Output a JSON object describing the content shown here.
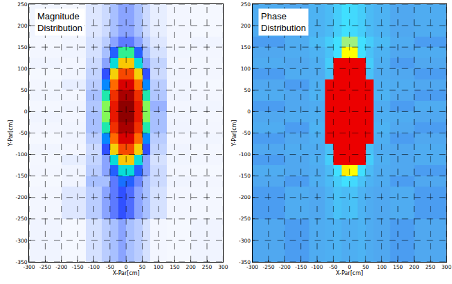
{
  "chart_data": [
    {
      "type": "heatmap",
      "title": "Magnitude Distribution",
      "xlabel": "X-Par[cm]",
      "ylabel": "Y-Par[cm]",
      "x": [
        -300,
        -200,
        -125,
        -75,
        -50,
        -25,
        0,
        25,
        50,
        75,
        125,
        200,
        300
      ],
      "y": [
        -350,
        -250,
        -175,
        -150,
        -125,
        -100,
        -75,
        -50,
        -25,
        0,
        25,
        50,
        75,
        100,
        125,
        150,
        175,
        250
      ],
      "z": [
        [
          0.12,
          0.08,
          0.15,
          0.18,
          0.2,
          0.22,
          0.2,
          0.18,
          0.15,
          0.1,
          0.08,
          0.12
        ],
        [
          0.1,
          0.14,
          0.18,
          0.22,
          0.25,
          0.28,
          0.26,
          0.22,
          0.2,
          0.15,
          0.1,
          0.09
        ],
        [
          0.08,
          0.12,
          0.2,
          0.2,
          0.25,
          0.32,
          0.3,
          0.24,
          0.2,
          0.16,
          0.12,
          0.1
        ],
        [
          0.1,
          0.12,
          0.18,
          0.22,
          0.3,
          0.45,
          0.45,
          0.3,
          0.22,
          0.16,
          0.1,
          0.08
        ],
        [
          0.09,
          0.13,
          0.17,
          0.22,
          0.45,
          0.63,
          0.63,
          0.45,
          0.22,
          0.15,
          0.11,
          0.1
        ],
        [
          0.11,
          0.1,
          0.16,
          0.28,
          0.62,
          0.77,
          0.77,
          0.62,
          0.28,
          0.17,
          0.12,
          0.09
        ],
        [
          0.08,
          0.12,
          0.18,
          0.35,
          0.73,
          0.87,
          0.87,
          0.73,
          0.35,
          0.18,
          0.1,
          0.11
        ],
        [
          0.1,
          0.11,
          0.2,
          0.48,
          0.8,
          0.94,
          0.94,
          0.8,
          0.48,
          0.2,
          0.12,
          0.1
        ],
        [
          0.12,
          0.1,
          0.2,
          0.53,
          0.83,
          0.98,
          0.98,
          0.83,
          0.53,
          0.2,
          0.11,
          0.09
        ],
        [
          0.09,
          0.12,
          0.19,
          0.53,
          0.83,
          0.98,
          0.98,
          0.83,
          0.53,
          0.21,
          0.1,
          0.11
        ],
        [
          0.11,
          0.1,
          0.2,
          0.48,
          0.8,
          0.94,
          0.94,
          0.8,
          0.48,
          0.19,
          0.12,
          0.1
        ],
        [
          0.1,
          0.13,
          0.18,
          0.35,
          0.73,
          0.87,
          0.87,
          0.73,
          0.35,
          0.18,
          0.11,
          0.08
        ],
        [
          0.08,
          0.11,
          0.17,
          0.28,
          0.62,
          0.77,
          0.77,
          0.62,
          0.28,
          0.16,
          0.12,
          0.1
        ],
        [
          0.12,
          0.1,
          0.16,
          0.22,
          0.45,
          0.63,
          0.63,
          0.45,
          0.22,
          0.17,
          0.1,
          0.09
        ],
        [
          0.1,
          0.12,
          0.15,
          0.2,
          0.3,
          0.5,
          0.5,
          0.3,
          0.2,
          0.15,
          0.11,
          0.1
        ],
        [
          0.09,
          0.11,
          0.15,
          0.18,
          0.22,
          0.25,
          0.25,
          0.22,
          0.18,
          0.14,
          0.1,
          0.12
        ],
        [
          0.11,
          0.09,
          0.14,
          0.16,
          0.2,
          0.22,
          0.22,
          0.2,
          0.16,
          0.13,
          0.1,
          0.08
        ]
      ],
      "zlim": [
        0,
        1
      ],
      "xlim": [
        -300,
        300
      ],
      "ylim": [
        -350,
        250
      ],
      "xticks": [
        -300,
        -250,
        -200,
        -150,
        -100,
        -50,
        0,
        50,
        100,
        150,
        200,
        250,
        300
      ],
      "yticks": [
        -350,
        -300,
        -250,
        -200,
        -150,
        -100,
        -50,
        0,
        50,
        100,
        150,
        200,
        250
      ],
      "grid": true
    },
    {
      "type": "heatmap",
      "title": "Phase Distribution",
      "xlabel": "X-Par[cm]",
      "ylabel": "Y-Par[cm]",
      "x": [
        -300,
        -200,
        -125,
        -75,
        -50,
        -25,
        0,
        25,
        50,
        75,
        125,
        200,
        300
      ],
      "y": [
        -350,
        -250,
        -175,
        -150,
        -125,
        -100,
        -75,
        -50,
        -25,
        0,
        25,
        50,
        75,
        100,
        125,
        150,
        175,
        250
      ],
      "z": [
        [
          0.35,
          0.34,
          0.36,
          0.37,
          0.38,
          0.36,
          0.37,
          0.38,
          0.36,
          0.35,
          0.34,
          0.35
        ],
        [
          0.34,
          0.36,
          0.35,
          0.38,
          0.42,
          0.4,
          0.42,
          0.38,
          0.36,
          0.35,
          0.36,
          0.34
        ],
        [
          0.35,
          0.34,
          0.37,
          0.4,
          0.45,
          0.5,
          0.48,
          0.42,
          0.38,
          0.36,
          0.34,
          0.35
        ],
        [
          0.36,
          0.35,
          0.36,
          0.4,
          0.5,
          0.62,
          0.6,
          0.5,
          0.4,
          0.36,
          0.35,
          0.34
        ],
        [
          0.34,
          0.35,
          0.37,
          0.45,
          0.92,
          0.92,
          0.92,
          0.92,
          0.45,
          0.37,
          0.35,
          0.36
        ],
        [
          0.35,
          0.36,
          0.36,
          0.42,
          0.92,
          0.92,
          0.92,
          0.92,
          0.42,
          0.36,
          0.35,
          0.36
        ],
        [
          0.34,
          0.35,
          0.37,
          0.92,
          0.92,
          0.92,
          0.92,
          0.92,
          0.92,
          0.37,
          0.34,
          0.35
        ],
        [
          0.36,
          0.34,
          0.38,
          0.92,
          0.92,
          0.92,
          0.92,
          0.92,
          0.92,
          0.38,
          0.35,
          0.34
        ],
        [
          0.35,
          0.36,
          0.37,
          0.92,
          0.92,
          0.92,
          0.92,
          0.92,
          0.92,
          0.37,
          0.36,
          0.35
        ],
        [
          0.34,
          0.35,
          0.36,
          0.92,
          0.92,
          0.92,
          0.92,
          0.92,
          0.92,
          0.36,
          0.34,
          0.36
        ],
        [
          0.36,
          0.35,
          0.38,
          0.92,
          0.92,
          0.92,
          0.92,
          0.92,
          0.92,
          0.38,
          0.35,
          0.34
        ],
        [
          0.35,
          0.34,
          0.37,
          0.92,
          0.92,
          0.92,
          0.92,
          0.92,
          0.92,
          0.37,
          0.36,
          0.35
        ],
        [
          0.34,
          0.36,
          0.36,
          0.42,
          0.92,
          0.92,
          0.92,
          0.92,
          0.42,
          0.36,
          0.35,
          0.34
        ],
        [
          0.36,
          0.35,
          0.37,
          0.45,
          0.92,
          0.92,
          0.92,
          0.92,
          0.45,
          0.37,
          0.34,
          0.35
        ],
        [
          0.35,
          0.36,
          0.38,
          0.42,
          0.5,
          0.6,
          0.6,
          0.5,
          0.42,
          0.38,
          0.35,
          0.36
        ],
        [
          0.34,
          0.36,
          0.4,
          0.45,
          0.5,
          0.55,
          0.55,
          0.5,
          0.45,
          0.4,
          0.36,
          0.34
        ],
        [
          0.36,
          0.35,
          0.38,
          0.4,
          0.45,
          0.5,
          0.48,
          0.45,
          0.4,
          0.38,
          0.35,
          0.36
        ]
      ],
      "zlim": [
        0,
        1
      ],
      "xlim": [
        -300,
        300
      ],
      "ylim": [
        -350,
        250
      ],
      "xticks": [
        -300,
        -250,
        -200,
        -150,
        -100,
        -50,
        0,
        50,
        100,
        150,
        200,
        250,
        300
      ],
      "yticks": [
        -350,
        -300,
        -250,
        -200,
        -150,
        -100,
        -50,
        0,
        50,
        100,
        150,
        200,
        250
      ],
      "grid": true
    }
  ]
}
